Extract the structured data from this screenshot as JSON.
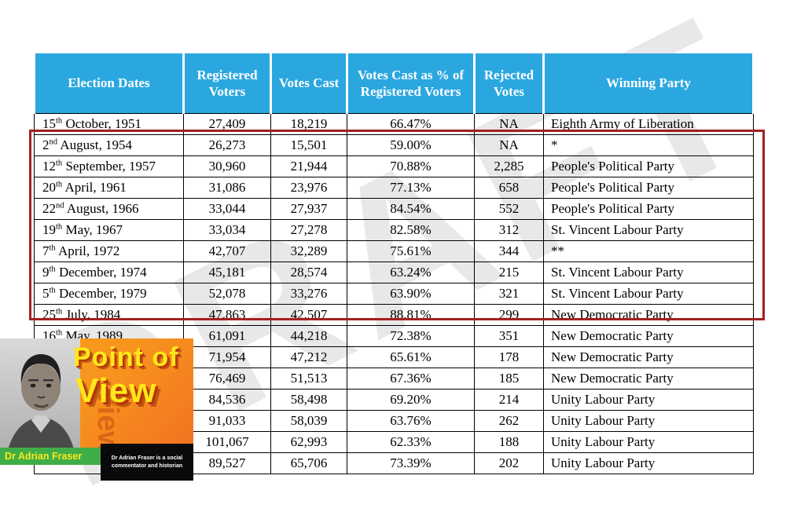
{
  "watermark": "DRAFT",
  "chart_data": {
    "type": "table",
    "columns": [
      "Election Dates",
      "Registered Voters",
      "Votes Cast",
      "Votes Cast as % of Registered Voters",
      "Rejected Votes",
      "Winning Party"
    ],
    "rows": [
      {
        "date": "15th October, 1951",
        "registered": "27,409",
        "cast": "18,219",
        "pct": "66.47%",
        "rejected": "NA",
        "party": "Eighth Army of Liberation"
      },
      {
        "date": "2nd August, 1954",
        "registered": "26,273",
        "cast": "15,501",
        "pct": "59.00%",
        "rejected": "NA",
        "party": "*"
      },
      {
        "date": "12th September, 1957",
        "registered": "30,960",
        "cast": "21,944",
        "pct": "70.88%",
        "rejected": "2,285",
        "party": "People's Political Party"
      },
      {
        "date": "20th April, 1961",
        "registered": "31,086",
        "cast": "23,976",
        "pct": "77.13%",
        "rejected": "658",
        "party": "People's Political Party"
      },
      {
        "date": "22nd August, 1966",
        "registered": "33,044",
        "cast": "27,937",
        "pct": "84.54%",
        "rejected": "552",
        "party": "People's Political Party"
      },
      {
        "date": "19th May, 1967",
        "registered": "33,034",
        "cast": "27,278",
        "pct": "82.58%",
        "rejected": "312",
        "party": "St. Vincent Labour Party"
      },
      {
        "date": "7th April, 1972",
        "registered": "42,707",
        "cast": "32,289",
        "pct": "75.61%",
        "rejected": "344",
        "party": "**"
      },
      {
        "date": "9th December, 1974",
        "registered": "45,181",
        "cast": "28,574",
        "pct": "63.24%",
        "rejected": "215",
        "party": "St. Vincent Labour Party"
      },
      {
        "date": "5th December, 1979",
        "registered": "52,078",
        "cast": "33,276",
        "pct": "63.90%",
        "rejected": "321",
        "party": "St. Vincent Labour Party"
      },
      {
        "date": "25th July, 1984",
        "registered": "47,863",
        "cast": "42,507",
        "pct": "88.81%",
        "rejected": "299",
        "party": "New Democratic Party"
      },
      {
        "date": "16th May, 1989",
        "registered": "61,091",
        "cast": "44,218",
        "pct": "72.38%",
        "rejected": "351",
        "party": "New Democratic Party"
      },
      {
        "date": "",
        "registered": "71,954",
        "cast": "47,212",
        "pct": "65.61%",
        "rejected": "178",
        "party": "New Democratic Party"
      },
      {
        "date": "",
        "registered": "76,469",
        "cast": "51,513",
        "pct": "67.36%",
        "rejected": "185",
        "party": "New Democratic Party"
      },
      {
        "date": "",
        "registered": "84,536",
        "cast": "58,498",
        "pct": "69.20%",
        "rejected": "214",
        "party": "Unity Labour Party"
      },
      {
        "date": "",
        "registered": "91,033",
        "cast": "58,039",
        "pct": "63.76%",
        "rejected": "262",
        "party": "Unity Labour Party"
      },
      {
        "date": "",
        "registered": "101,067",
        "cast": "62,993",
        "pct": "62.33%",
        "rejected": "188",
        "party": "Unity Labour Party"
      },
      {
        "date": "",
        "registered": "89,527",
        "cast": "65,706",
        "pct": "73.39%",
        "rejected": "202",
        "party": "Unity Labour Party"
      }
    ],
    "highlight": {
      "style": "red-outline-box",
      "first_row": "2nd August, 1954",
      "last_row": "25th July, 1984"
    }
  },
  "overlay": {
    "title_line1": "Point of",
    "title_line2": "View",
    "echo_text": "View",
    "name_bar": "Dr Adrian Fraser",
    "caption": "Dr Adrian Fraser is a social commentator and historian"
  },
  "colors": {
    "header_bg": "#2BA7E0",
    "highlight_border": "#A52020",
    "overlay_orange": "#F7941E",
    "overlay_green": "#3FAE49",
    "overlay_yellow": "#FFE81A",
    "watermark_gray": "#D7D7D7"
  }
}
